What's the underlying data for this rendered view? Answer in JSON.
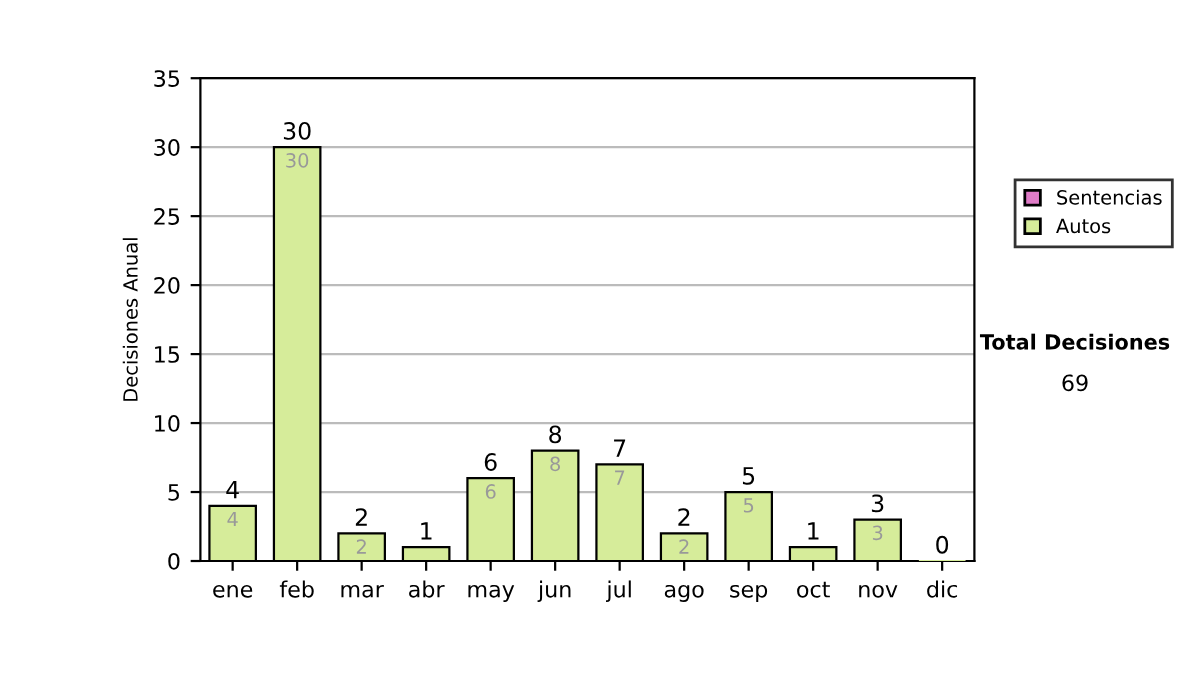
{
  "chart_data": {
    "type": "bar",
    "stacked": true,
    "ylabel": "Decisiones Anual",
    "categories": [
      "ene",
      "feb",
      "mar",
      "abr",
      "may",
      "jun",
      "jul",
      "ago",
      "sep",
      "oct",
      "nov",
      "dic"
    ],
    "series": [
      {
        "name": "Sentencias",
        "color": "#e07cc8",
        "values": [
          0,
          0,
          0,
          0,
          0,
          0,
          0,
          0,
          0,
          0,
          0,
          0
        ]
      },
      {
        "name": "Autos",
        "color": "#d6ec9a",
        "values": [
          4,
          30,
          2,
          1,
          6,
          8,
          7,
          2,
          5,
          1,
          3,
          0
        ],
        "value_labels": [
          "4",
          "30",
          "2",
          null,
          "6",
          "8",
          "7",
          "2",
          "5",
          null,
          "3",
          null
        ]
      }
    ],
    "totals": [
      "4",
      "30",
      "2",
      "1",
      "6",
      "8",
      "7",
      "2",
      "5",
      "1",
      "3",
      "0"
    ],
    "ylim": [
      0,
      35
    ],
    "yticks": [
      0,
      5,
      10,
      15,
      20,
      25,
      30,
      35
    ],
    "grid": "y",
    "legend": "right",
    "annotations": [
      "Total Decisiones",
      "69"
    ]
  }
}
